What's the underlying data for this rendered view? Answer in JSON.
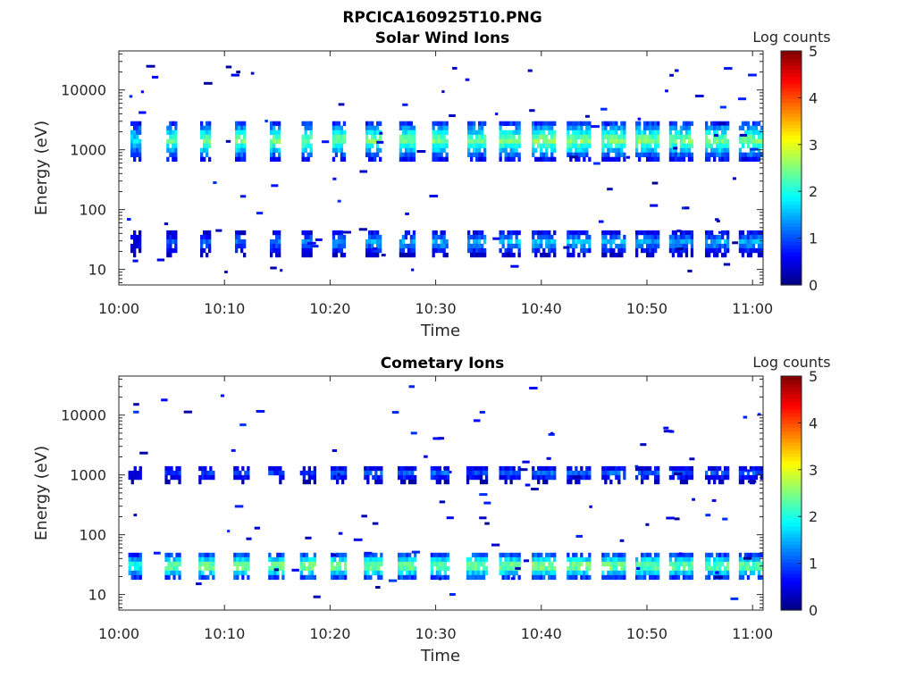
{
  "figure_title": "RPCICA160925T10.PNG",
  "colorscale": [
    "#00007f",
    "#0000ff",
    "#007fff",
    "#00ffff",
    "#7fff7f",
    "#ffff00",
    "#ff7f00",
    "#ff0000",
    "#7f0000"
  ],
  "chart_data": [
    {
      "type": "heatmap",
      "title": "Solar Wind Ions",
      "xlabel": "Time",
      "ylabel": "Energy (eV)",
      "x_ticks": [
        "10:00",
        "10:10",
        "10:20",
        "10:30",
        "10:40",
        "10:50",
        "11:00"
      ],
      "x_tick_minutes": [
        0,
        10,
        20,
        30,
        40,
        50,
        60
      ],
      "xlim_minutes": [
        0,
        61
      ],
      "y_scale": "log",
      "y_ticks": [
        "10",
        "100",
        "1000",
        "10000"
      ],
      "y_tick_values": [
        10,
        100,
        1000,
        10000
      ],
      "ylim": [
        5.5,
        45000
      ],
      "colorbar": {
        "label": "Log counts",
        "range": [
          0,
          5
        ],
        "ticks": [
          "0",
          "1",
          "2",
          "3",
          "4",
          "5"
        ]
      },
      "sweeps": [
        {
          "t": 1.5,
          "w": 0.8,
          "hi_peak": 1.9,
          "lo_peak": 0.6
        },
        {
          "t": 5.0,
          "w": 1.0,
          "hi_peak": 2.4,
          "lo_peak": 1.0
        },
        {
          "t": 8.2,
          "w": 1.0,
          "hi_peak": 2.6,
          "lo_peak": 1.1
        },
        {
          "t": 11.5,
          "w": 1.0,
          "hi_peak": 2.6,
          "lo_peak": 1.2
        },
        {
          "t": 14.8,
          "w": 1.0,
          "hi_peak": 2.6,
          "lo_peak": 1.3
        },
        {
          "t": 17.8,
          "w": 1.0,
          "hi_peak": 2.6,
          "lo_peak": 1.3
        },
        {
          "t": 20.8,
          "w": 1.2,
          "hi_peak": 2.6,
          "lo_peak": 1.4
        },
        {
          "t": 24.0,
          "w": 1.3,
          "hi_peak": 2.6,
          "lo_peak": 1.5
        },
        {
          "t": 27.2,
          "w": 1.3,
          "hi_peak": 2.6,
          "lo_peak": 1.5
        },
        {
          "t": 30.3,
          "w": 1.3,
          "hi_peak": 2.6,
          "lo_peak": 1.5
        },
        {
          "t": 33.8,
          "w": 1.6,
          "hi_peak": 2.5,
          "lo_peak": 1.6
        },
        {
          "t": 37.0,
          "w": 2.0,
          "hi_peak": 2.6,
          "lo_peak": 1.7
        },
        {
          "t": 40.2,
          "w": 2.2,
          "hi_peak": 2.7,
          "lo_peak": 1.7
        },
        {
          "t": 43.5,
          "w": 2.2,
          "hi_peak": 2.7,
          "lo_peak": 1.7
        },
        {
          "t": 46.8,
          "w": 2.2,
          "hi_peak": 2.6,
          "lo_peak": 1.6
        },
        {
          "t": 50.0,
          "w": 2.2,
          "hi_peak": 2.6,
          "lo_peak": 1.5
        },
        {
          "t": 53.2,
          "w": 2.2,
          "hi_peak": 2.6,
          "lo_peak": 1.5
        },
        {
          "t": 56.6,
          "w": 2.2,
          "hi_peak": 2.6,
          "lo_peak": 1.5
        },
        {
          "t": 59.8,
          "w": 2.2,
          "hi_peak": 2.6,
          "lo_peak": 1.5
        }
      ],
      "hi_band_energy": [
        700,
        3000
      ],
      "lo_band_energy": [
        18,
        45
      ]
    },
    {
      "type": "heatmap",
      "title": "Cometary Ions",
      "xlabel": "Time",
      "ylabel": "Energy (eV)",
      "x_ticks": [
        "10:00",
        "10:10",
        "10:20",
        "10:30",
        "10:40",
        "10:50",
        "11:00"
      ],
      "x_tick_minutes": [
        0,
        10,
        20,
        30,
        40,
        50,
        60
      ],
      "xlim_minutes": [
        0,
        61
      ],
      "y_scale": "log",
      "y_ticks": [
        "10",
        "100",
        "1000",
        "10000"
      ],
      "y_tick_values": [
        10,
        100,
        1000,
        10000
      ],
      "ylim": [
        5.5,
        45000
      ],
      "colorbar": {
        "label": "Log counts",
        "range": [
          0,
          5
        ],
        "ticks": [
          "0",
          "1",
          "2",
          "3",
          "4",
          "5"
        ]
      },
      "sweeps": [
        {
          "t": 1.5,
          "w": 1.2,
          "hi_peak": 0.6,
          "lo_peak": 2.2
        },
        {
          "t": 5.0,
          "w": 1.3,
          "hi_peak": 1.0,
          "lo_peak": 2.6
        },
        {
          "t": 8.2,
          "w": 1.3,
          "hi_peak": 1.0,
          "lo_peak": 2.7
        },
        {
          "t": 11.5,
          "w": 1.3,
          "hi_peak": 1.0,
          "lo_peak": 2.7
        },
        {
          "t": 14.8,
          "w": 1.3,
          "hi_peak": 1.0,
          "lo_peak": 2.7
        },
        {
          "t": 17.8,
          "w": 1.3,
          "hi_peak": 1.0,
          "lo_peak": 2.7
        },
        {
          "t": 20.8,
          "w": 1.5,
          "hi_peak": 1.2,
          "lo_peak": 2.7
        },
        {
          "t": 24.0,
          "w": 1.6,
          "hi_peak": 1.2,
          "lo_peak": 2.7
        },
        {
          "t": 27.2,
          "w": 1.6,
          "hi_peak": 1.2,
          "lo_peak": 2.7
        },
        {
          "t": 30.3,
          "w": 1.6,
          "hi_peak": 1.2,
          "lo_peak": 2.6
        },
        {
          "t": 33.8,
          "w": 1.8,
          "hi_peak": 1.0,
          "lo_peak": 2.7
        },
        {
          "t": 37.0,
          "w": 2.0,
          "hi_peak": 1.2,
          "lo_peak": 2.7
        },
        {
          "t": 40.2,
          "w": 2.2,
          "hi_peak": 1.2,
          "lo_peak": 2.8
        },
        {
          "t": 43.5,
          "w": 2.2,
          "hi_peak": 1.2,
          "lo_peak": 2.7
        },
        {
          "t": 46.8,
          "w": 2.2,
          "hi_peak": 1.2,
          "lo_peak": 2.7
        },
        {
          "t": 50.0,
          "w": 2.2,
          "hi_peak": 1.1,
          "lo_peak": 2.6
        },
        {
          "t": 53.2,
          "w": 2.2,
          "hi_peak": 1.1,
          "lo_peak": 2.6
        },
        {
          "t": 56.6,
          "w": 2.2,
          "hi_peak": 1.1,
          "lo_peak": 2.6
        },
        {
          "t": 59.8,
          "w": 2.2,
          "hi_peak": 1.1,
          "lo_peak": 2.6
        }
      ],
      "hi_band_energy": [
        800,
        1400
      ],
      "lo_band_energy": [
        18,
        50
      ]
    }
  ]
}
